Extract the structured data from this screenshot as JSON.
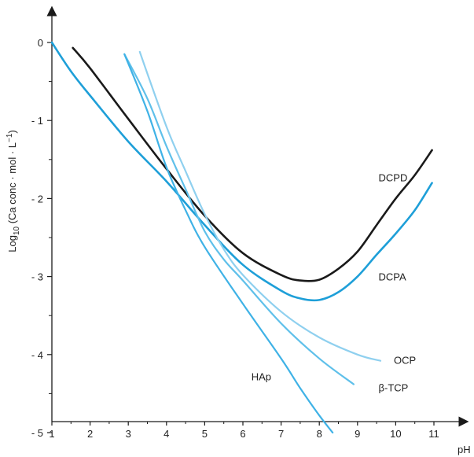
{
  "chart_data": {
    "type": "line",
    "xlabel": "pH",
    "ylabel": "Log10 (Ca conc · mol · L−1)",
    "ylabel_parts": {
      "pre": "Log",
      "sub": "10",
      "mid": " (Ca conc · mol · L",
      "sup": "−1",
      "post": ")"
    },
    "xlim": [
      1,
      11.5
    ],
    "ylim": [
      -5,
      0.4
    ],
    "xticks": [
      "1",
      "2",
      "3",
      "4",
      "5",
      "6",
      "7",
      "8",
      "9",
      "10",
      "11"
    ],
    "yticks": [
      {
        "value": 0,
        "label": "0"
      },
      {
        "value": -1,
        "label": "- 1"
      },
      {
        "value": -2,
        "label": "- 2"
      },
      {
        "value": -3,
        "label": "- 3"
      },
      {
        "value": -4,
        "label": "- 4"
      },
      {
        "value": -5,
        "label": "- 5"
      }
    ],
    "grid": false,
    "series": [
      {
        "name": "DCPD",
        "color": "#1a1a1a",
        "width": 2.6,
        "label_at": [
          9.55,
          -1.78
        ],
        "points": [
          [
            1.55,
            -0.07
          ],
          [
            2,
            -0.33
          ],
          [
            3,
            -0.98
          ],
          [
            4,
            -1.62
          ],
          [
            5,
            -2.22
          ],
          [
            6,
            -2.7
          ],
          [
            7,
            -2.98
          ],
          [
            7.5,
            -3.05
          ],
          [
            8,
            -3.04
          ],
          [
            8.5,
            -2.9
          ],
          [
            9,
            -2.68
          ],
          [
            9.5,
            -2.34
          ],
          [
            10,
            -2.0
          ],
          [
            10.5,
            -1.7
          ],
          [
            10.95,
            -1.38
          ]
        ]
      },
      {
        "name": "DCPA",
        "color": "#1e9fd8",
        "width": 2.6,
        "label_at": [
          9.55,
          -3.05
        ],
        "points": [
          [
            1,
            0.0
          ],
          [
            1.5,
            -0.37
          ],
          [
            2,
            -0.68
          ],
          [
            3,
            -1.27
          ],
          [
            4,
            -1.78
          ],
          [
            5,
            -2.34
          ],
          [
            6,
            -2.85
          ],
          [
            7,
            -3.18
          ],
          [
            7.5,
            -3.28
          ],
          [
            8,
            -3.3
          ],
          [
            8.5,
            -3.2
          ],
          [
            9,
            -3.0
          ],
          [
            9.5,
            -2.72
          ],
          [
            10,
            -2.45
          ],
          [
            10.5,
            -2.15
          ],
          [
            10.95,
            -1.8
          ]
        ]
      },
      {
        "name": "OCP",
        "color": "#8fd0ef",
        "width": 2.2,
        "label_at": [
          9.95,
          -4.12
        ],
        "points": [
          [
            3.3,
            -0.12
          ],
          [
            4,
            -1.08
          ],
          [
            4.5,
            -1.65
          ],
          [
            5,
            -2.2
          ],
          [
            5.5,
            -2.65
          ],
          [
            6,
            -2.98
          ],
          [
            7,
            -3.45
          ],
          [
            8,
            -3.78
          ],
          [
            9,
            -4.0
          ],
          [
            9.6,
            -4.08
          ]
        ]
      },
      {
        "name": "β-TCP",
        "color": "#5fc0ea",
        "width": 2.2,
        "label_at": [
          9.55,
          -4.47
        ],
        "points": [
          [
            2.9,
            -0.15
          ],
          [
            3.5,
            -0.72
          ],
          [
            4,
            -1.33
          ],
          [
            4.5,
            -1.88
          ],
          [
            5,
            -2.42
          ],
          [
            5.5,
            -2.78
          ],
          [
            6,
            -3.05
          ],
          [
            7,
            -3.6
          ],
          [
            8,
            -4.05
          ],
          [
            8.9,
            -4.38
          ]
        ]
      },
      {
        "name": "HAp",
        "color": "#3fb2e6",
        "width": 2.2,
        "label_at": [
          6.22,
          -4.33
        ],
        "points": [
          [
            2.9,
            -0.15
          ],
          [
            3.5,
            -0.88
          ],
          [
            4,
            -1.6
          ],
          [
            4.5,
            -2.15
          ],
          [
            5,
            -2.62
          ],
          [
            6,
            -3.35
          ],
          [
            7,
            -4.05
          ],
          [
            7.5,
            -4.43
          ],
          [
            8,
            -4.78
          ],
          [
            8.35,
            -5.0
          ]
        ]
      }
    ]
  }
}
